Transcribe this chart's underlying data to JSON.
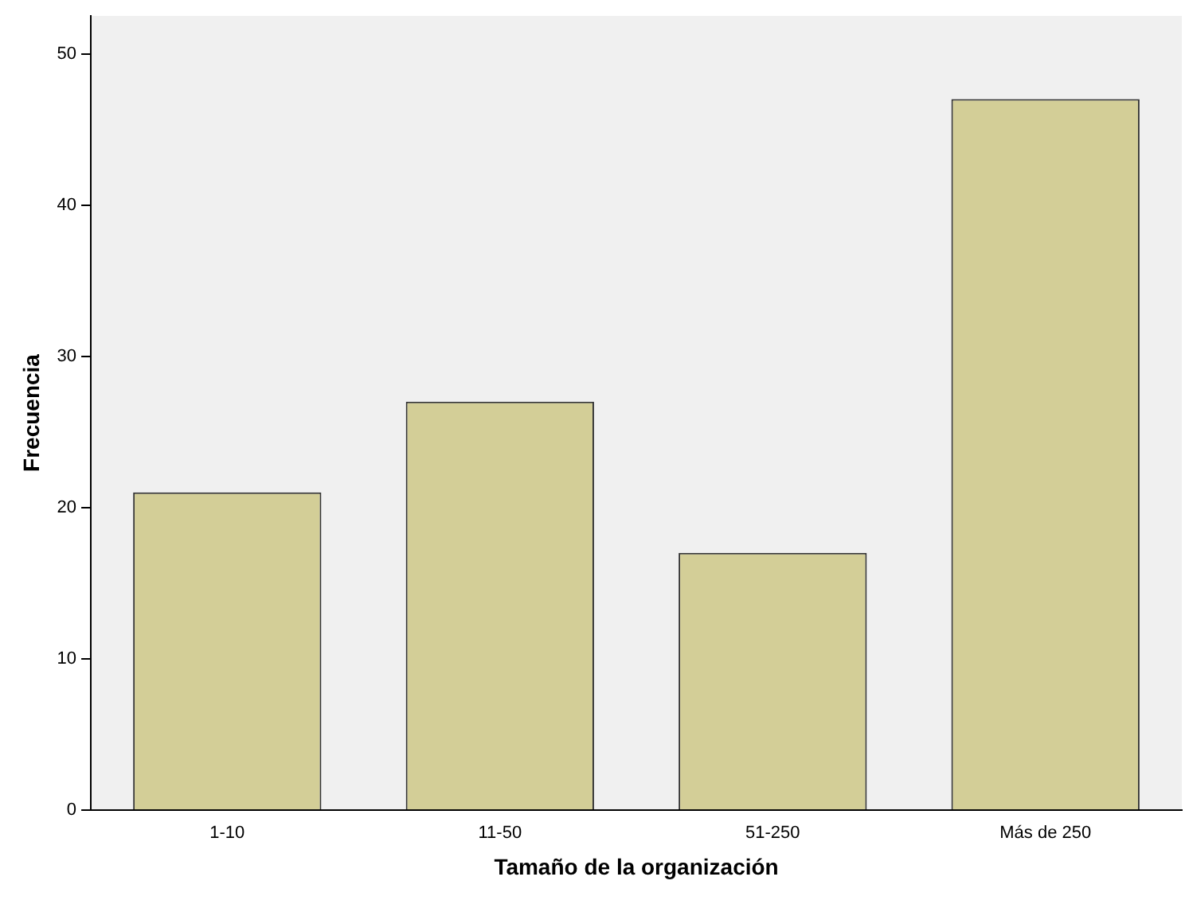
{
  "chart_data": {
    "type": "bar",
    "xlabel": "Tamaño de la organización",
    "ylabel": "Frecuencia",
    "categories": [
      "1-10",
      "11-50",
      "51-250",
      "Más de 250"
    ],
    "values": [
      21,
      27,
      17,
      47
    ],
    "color": "#d3ce97",
    "ylim": [
      0,
      52.5
    ],
    "yticks": [
      0,
      10,
      20,
      30,
      40,
      50
    ],
    "grid": false,
    "legend": false
  }
}
